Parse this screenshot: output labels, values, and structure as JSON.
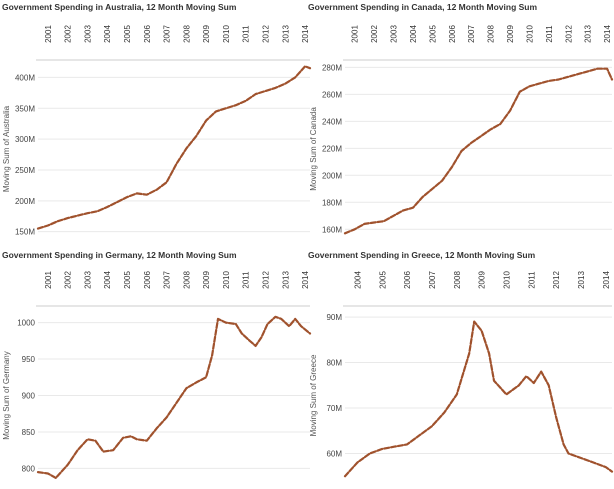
{
  "chart_data": [
    {
      "type": "line",
      "title": "Government Spending in Australia, 12 Month Moving Sum",
      "ylabel": "Moving Sum of Australia",
      "ytick_labels": [
        "150M",
        "200M",
        "250M",
        "300M",
        "350M",
        "400M"
      ],
      "ytick_values": [
        150,
        200,
        250,
        300,
        350,
        400
      ],
      "ylim": [
        143,
        425
      ],
      "xlim": [
        2001.0,
        2014.75
      ],
      "xtick_labels": [
        "2001",
        "2002",
        "2003",
        "2004",
        "2005",
        "2006",
        "2007",
        "2008",
        "2009",
        "2010",
        "2011",
        "2012",
        "2013",
        "2014"
      ],
      "color": "#A0522D",
      "series": [
        {
          "x": [
            2001.0,
            2001.5,
            2002.0,
            2002.5,
            2003.0,
            2003.5,
            2004.0,
            2004.5,
            2005.0,
            2005.5,
            2006.0,
            2006.5,
            2007.0,
            2007.5,
            2008.0,
            2008.5,
            2009.0,
            2009.5,
            2010.0,
            2010.5,
            2011.0,
            2011.5,
            2012.0,
            2012.5,
            2013.0,
            2013.5,
            2014.0,
            2014.5,
            2014.75
          ],
          "y": [
            155,
            160,
            167,
            172,
            176,
            180,
            183,
            190,
            198,
            206,
            212,
            210,
            218,
            230,
            260,
            285,
            305,
            330,
            345,
            350,
            355,
            362,
            373,
            378,
            383,
            390,
            400,
            418,
            415
          ]
        }
      ]
    },
    {
      "type": "line",
      "title": "Government Spending in Canada, 12 Month Moving Sum",
      "ylabel": "Moving Sum of Canada",
      "ytick_labels": [
        "160M",
        "180M",
        "200M",
        "220M",
        "240M",
        "260M",
        "280M"
      ],
      "ytick_values": [
        160,
        180,
        200,
        220,
        240,
        260,
        280
      ],
      "ylim": [
        155,
        284
      ],
      "xlim": [
        2001.0,
        2014.75
      ],
      "xtick_labels": [
        "2001",
        "2002",
        "2003",
        "2004",
        "2005",
        "2006",
        "2007",
        "2008",
        "2009",
        "2010",
        "2011",
        "2012",
        "2013",
        "2014"
      ],
      "color": "#A0522D",
      "series": [
        {
          "x": [
            2001.0,
            2001.5,
            2002.0,
            2002.5,
            2003.0,
            2003.5,
            2004.0,
            2004.5,
            2005.0,
            2005.5,
            2006.0,
            2006.5,
            2007.0,
            2007.5,
            2008.0,
            2008.5,
            2009.0,
            2009.5,
            2010.0,
            2010.5,
            2011.0,
            2011.5,
            2012.0,
            2012.5,
            2013.0,
            2013.5,
            2014.0,
            2014.5,
            2014.75
          ],
          "y": [
            157,
            160,
            164,
            165,
            166,
            170,
            174,
            176,
            184,
            190,
            196,
            206,
            218,
            224,
            229,
            234,
            238,
            248,
            262,
            266,
            268,
            270,
            271,
            273,
            275,
            277,
            279,
            279,
            271
          ]
        }
      ]
    },
    {
      "type": "line",
      "title": "Government Spending in Germany, 12 Month Moving Sum",
      "ylabel": "Moving Sum of Germany",
      "ytick_labels": [
        "800",
        "850",
        "900",
        "950",
        "1000"
      ],
      "ytick_values": [
        800,
        850,
        900,
        950,
        1000
      ],
      "ylim": [
        780,
        1020
      ],
      "xlim": [
        2001.0,
        2014.75
      ],
      "xtick_labels": [
        "2001",
        "2002",
        "2003",
        "2004",
        "2005",
        "2006",
        "2007",
        "2008",
        "2009",
        "2010",
        "2011",
        "2012",
        "2013",
        "2014"
      ],
      "color": "#A0522D",
      "series": [
        {
          "x": [
            2001.0,
            2001.5,
            2001.9,
            2002.5,
            2003.0,
            2003.5,
            2003.9,
            2004.3,
            2004.8,
            2005.3,
            2005.7,
            2006.0,
            2006.5,
            2007.0,
            2007.5,
            2008.0,
            2008.5,
            2009.0,
            2009.5,
            2009.8,
            2010.1,
            2010.5,
            2011.0,
            2011.3,
            2011.7,
            2012.0,
            2012.3,
            2012.6,
            2013.0,
            2013.3,
            2013.7,
            2014.0,
            2014.3,
            2014.75
          ],
          "y": [
            795,
            793,
            787,
            805,
            825,
            840,
            838,
            823,
            825,
            842,
            844,
            840,
            838,
            855,
            870,
            890,
            910,
            918,
            925,
            955,
            1005,
            1000,
            998,
            985,
            975,
            968,
            980,
            998,
            1008,
            1005,
            995,
            1005,
            995,
            985
          ]
        }
      ]
    },
    {
      "type": "line",
      "title": "Government Spending in Greece, 12 Month Moving Sum",
      "ylabel": "Moving Sum of Greece",
      "ytick_labels": [
        "60M",
        "70M",
        "80M",
        "90M"
      ],
      "ytick_values": [
        60,
        70,
        80,
        90
      ],
      "ylim": [
        53.5,
        92
      ],
      "xlim": [
        2004.0,
        2014.75
      ],
      "xtick_labels": [
        "2004",
        "2005",
        "2006",
        "2007",
        "2008",
        "2009",
        "2010",
        "2011",
        "2012",
        "2013",
        "2014"
      ],
      "color": "#A0522D",
      "series": [
        {
          "x": [
            2004.0,
            2004.5,
            2005.0,
            2005.5,
            2006.0,
            2006.5,
            2007.0,
            2007.5,
            2008.0,
            2008.5,
            2009.0,
            2009.2,
            2009.5,
            2009.8,
            2010.0,
            2010.5,
            2011.0,
            2011.3,
            2011.6,
            2011.9,
            2012.2,
            2012.5,
            2012.8,
            2013.0,
            2013.5,
            2014.0,
            2014.5,
            2014.75
          ],
          "y": [
            55,
            58,
            60,
            61,
            61.5,
            62,
            64,
            66,
            69,
            73,
            82,
            89,
            87,
            82,
            76,
            73,
            75,
            77,
            75.5,
            78,
            75,
            68,
            62,
            60,
            59,
            58,
            57,
            56
          ]
        }
      ]
    }
  ]
}
